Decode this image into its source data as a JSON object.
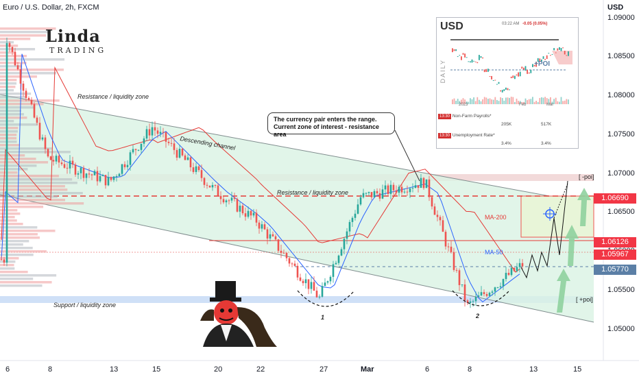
{
  "header": {
    "title": "Euro / U.S. Dollar, 2h, FXCM",
    "currency": "USD"
  },
  "logo": {
    "main": "Linda",
    "sub": "TRADING"
  },
  "price_axis": {
    "ticks": [
      "1.09000",
      "1.08500",
      "1.08000",
      "1.07500",
      "1.07000",
      "1.06500",
      "1.06000",
      "1.05500",
      "1.05000"
    ]
  },
  "price_tags": [
    {
      "value": "1.06690",
      "color": "#f23645"
    },
    {
      "value": "1.06126",
      "color": "#f23645"
    },
    {
      "value": "1.05967",
      "color": "#f23645"
    },
    {
      "value": "1.05770",
      "color": "#5b7fa6"
    }
  ],
  "date_axis": {
    "ticks": [
      "6",
      "8",
      "13",
      "15",
      "20",
      "22",
      "27",
      "Mar",
      "6",
      "8",
      "13",
      "15"
    ]
  },
  "annotations": {
    "resistance_top": "Resistance / liquidity zone",
    "descending": "Descending channel",
    "resistance_mid": "Resistance / liquidity zone",
    "support": "Support / liquidity zone",
    "minus_poi": "[ -poi]",
    "plus_poi": "[ +poi]",
    "ma200": "MA-200",
    "ma50": "MA-50",
    "bottom1": "1",
    "bottom2": "2"
  },
  "callout": {
    "line1": "The currency pair enters the range.",
    "line2": "Current zone of interest - resistance area"
  },
  "inset": {
    "title": "USD",
    "time": "03:22 AM",
    "change": "-0.05 (0.05%)",
    "side_label": "DAILY",
    "poi": "+POI",
    "years": [
      "2023",
      "Feb",
      "Mar"
    ],
    "events": [
      {
        "time": "13:30",
        "name": "Non-Farm Payrolls*",
        "a": "205K",
        "b": "517K"
      },
      {
        "time": "13:30",
        "name": "Unemployment Rate*",
        "a": "3.4%",
        "b": "3.4%"
      }
    ]
  },
  "colors": {
    "bull": "#26a69a",
    "bear": "#ef5350",
    "ma200": "#e53935",
    "ma50": "#2962ff",
    "channel": "#b7e4c7"
  },
  "chart_data": {
    "type": "candlestick",
    "title": "Euro / U.S. Dollar, 2h, FXCM",
    "ylim": [
      1.046,
      1.092
    ],
    "levels": [
      1.0669,
      1.06126,
      1.05967,
      1.0577
    ],
    "key_closes": [
      {
        "x": "6",
        "y": 1.088
      },
      {
        "x": "8",
        "y": 1.072
      },
      {
        "x": "13",
        "y": 1.069
      },
      {
        "x": "15",
        "y": 1.076
      },
      {
        "x": "20",
        "y": 1.068
      },
      {
        "x": "22",
        "y": 1.064
      },
      {
        "x": "27",
        "y": 1.054
      },
      {
        "x": "Mar",
        "y": 1.067
      },
      {
        "x": "6",
        "y": 1.069
      },
      {
        "x": "8",
        "y": 1.053
      },
      {
        "x": "13",
        "y": 1.059
      }
    ]
  }
}
